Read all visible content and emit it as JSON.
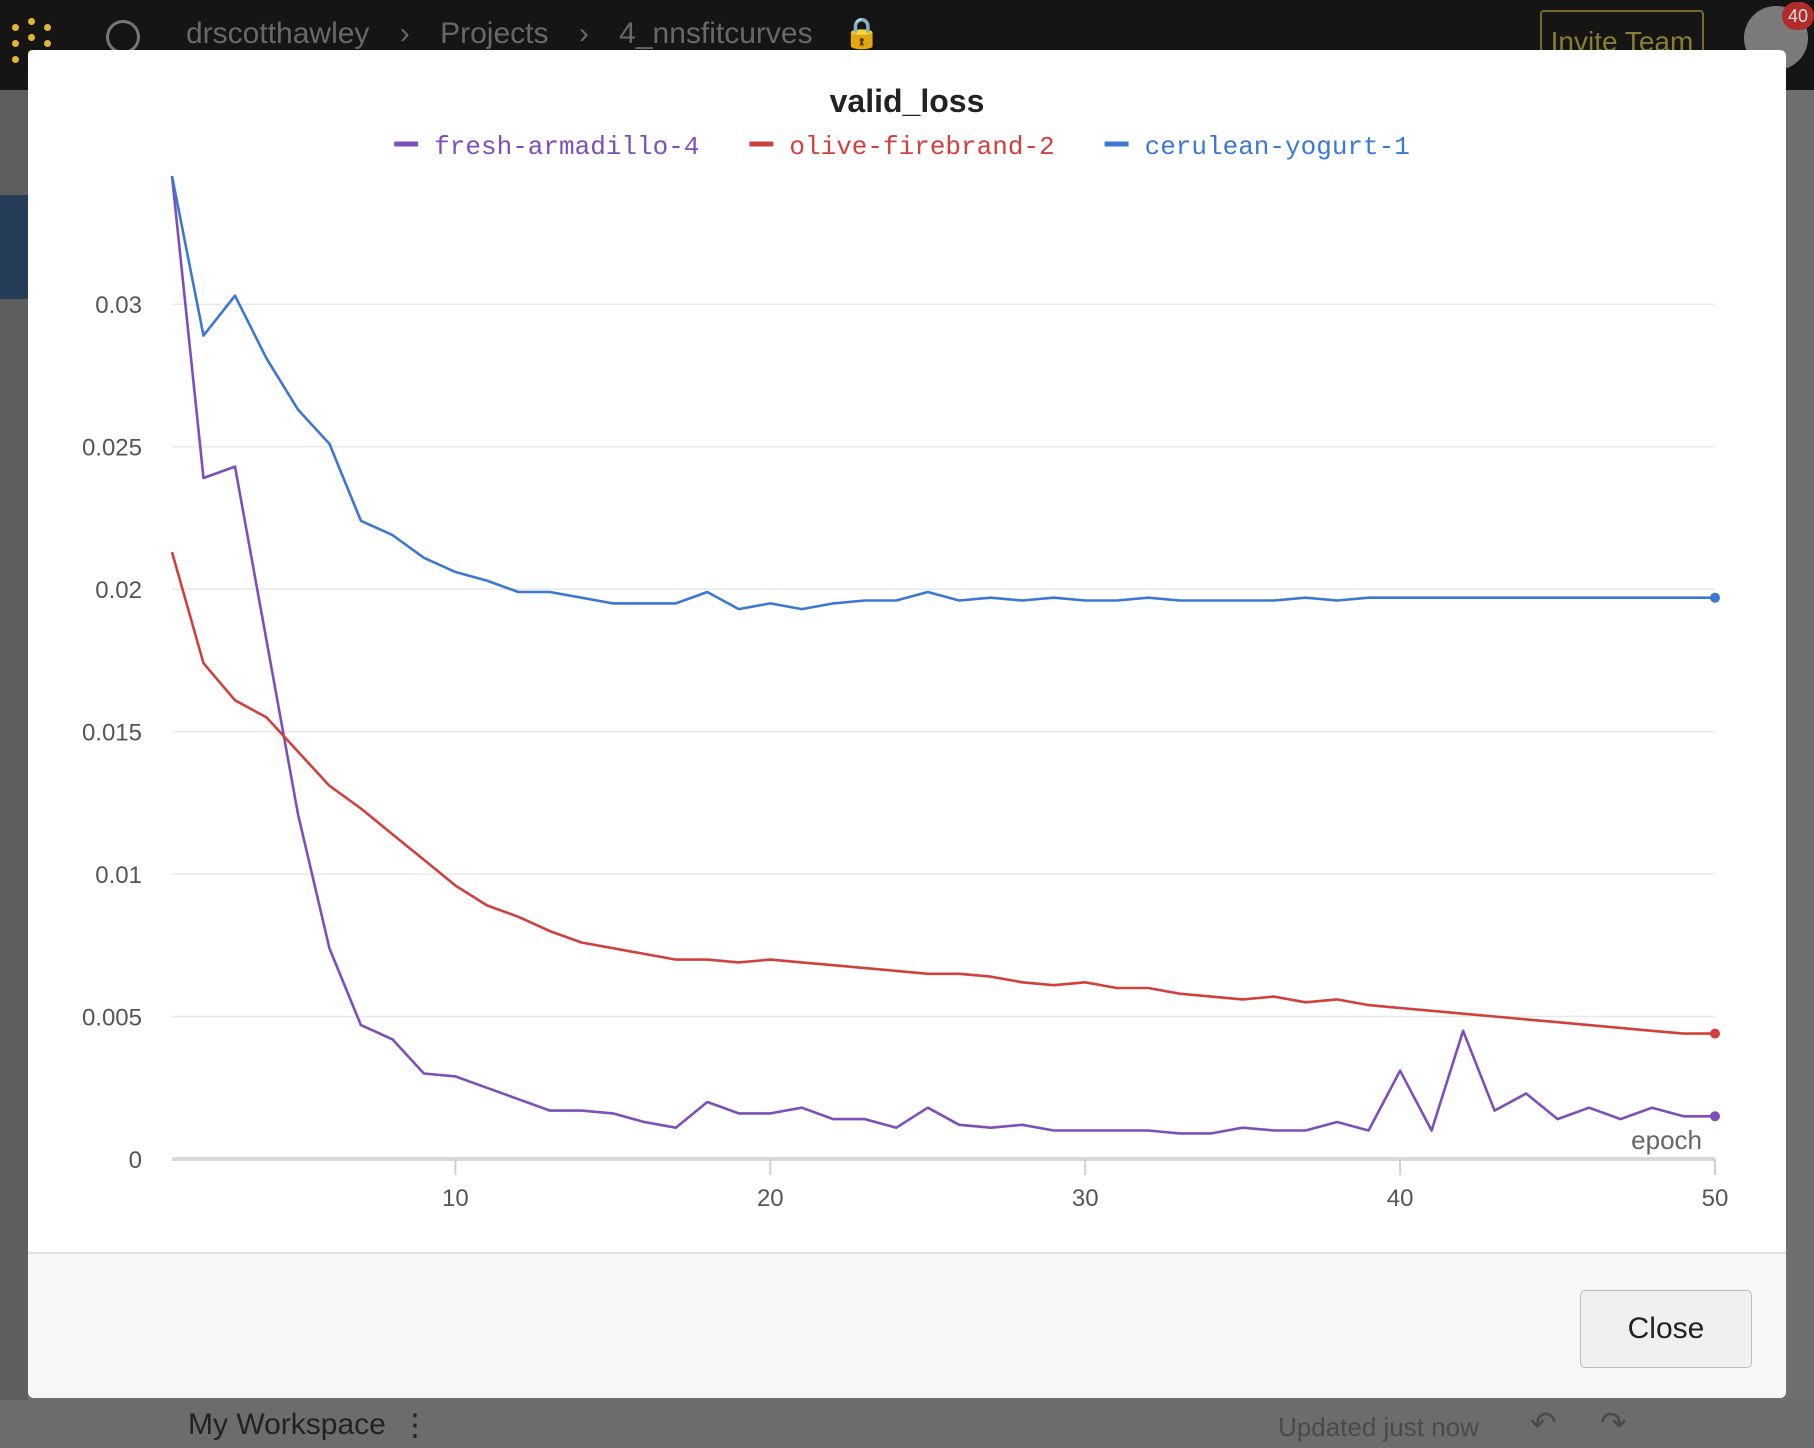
{
  "app": {
    "breadcrumb": [
      "drscotthawley",
      "Projects",
      "4_nnsfitcurves"
    ],
    "invite_label": "Invite Team",
    "notification_count": "40",
    "workspace_label": "My Workspace",
    "updated_text": "Updated just now"
  },
  "modal": {
    "close_label": "Close"
  },
  "chart_data": {
    "type": "line",
    "title": "valid_loss",
    "xlabel": "epoch",
    "ylabel": "",
    "xlim": [
      1,
      50
    ],
    "ylim": [
      0,
      0.0345
    ],
    "xticks": [
      10,
      20,
      30,
      40,
      50
    ],
    "yticks": [
      0,
      0.005,
      0.01,
      0.015,
      0.02,
      0.025,
      0.03
    ],
    "ytick_labels": [
      "0",
      "0.005",
      "0.01",
      "0.015",
      "0.02",
      "0.025",
      "0.03"
    ],
    "grid": true,
    "legend_position": "top-center",
    "x": [
      1,
      2,
      3,
      4,
      5,
      6,
      7,
      8,
      9,
      10,
      11,
      12,
      13,
      14,
      15,
      16,
      17,
      18,
      19,
      20,
      21,
      22,
      23,
      24,
      25,
      26,
      27,
      28,
      29,
      30,
      31,
      32,
      33,
      34,
      35,
      36,
      37,
      38,
      39,
      40,
      41,
      42,
      43,
      44,
      45,
      46,
      47,
      48,
      49,
      50
    ],
    "series": [
      {
        "name": "fresh-armadillo-4",
        "color": "#7e4fb8",
        "values": [
          0.0345,
          0.0239,
          0.0243,
          0.0182,
          0.0121,
          0.0074,
          0.0047,
          0.0042,
          0.003,
          0.0029,
          0.0025,
          0.0021,
          0.0017,
          0.0017,
          0.0016,
          0.0013,
          0.0011,
          0.002,
          0.0016,
          0.0016,
          0.0018,
          0.0014,
          0.0014,
          0.0011,
          0.0018,
          0.0012,
          0.0011,
          0.0012,
          0.001,
          0.001,
          0.001,
          0.001,
          0.0009,
          0.0009,
          0.0011,
          0.001,
          0.001,
          0.0013,
          0.001,
          0.0031,
          0.001,
          0.0045,
          0.0017,
          0.0023,
          0.0014,
          0.0018,
          0.0014,
          0.0018,
          0.0015,
          0.0015
        ]
      },
      {
        "name": "olive-firebrand-2",
        "color": "#d1403d",
        "values": [
          0.0213,
          0.0174,
          0.0161,
          0.0155,
          0.0143,
          0.0131,
          0.0123,
          0.0114,
          0.0105,
          0.0096,
          0.0089,
          0.0085,
          0.008,
          0.0076,
          0.0074,
          0.0072,
          0.007,
          0.007,
          0.0069,
          0.007,
          0.0069,
          0.0068,
          0.0067,
          0.0066,
          0.0065,
          0.0065,
          0.0064,
          0.0062,
          0.0061,
          0.0062,
          0.006,
          0.006,
          0.0058,
          0.0057,
          0.0056,
          0.0057,
          0.0055,
          0.0056,
          0.0054,
          0.0053,
          0.0052,
          0.0051,
          0.005,
          0.0049,
          0.0048,
          0.0047,
          0.0046,
          0.0045,
          0.0044,
          0.0044
        ]
      },
      {
        "name": "cerulean-yogurt-1",
        "color": "#3b78d4",
        "values": [
          0.0345,
          0.0289,
          0.0303,
          0.0281,
          0.0263,
          0.0251,
          0.0224,
          0.0219,
          0.0211,
          0.0206,
          0.0203,
          0.0199,
          0.0199,
          0.0197,
          0.0195,
          0.0195,
          0.0195,
          0.0199,
          0.0193,
          0.0195,
          0.0193,
          0.0195,
          0.0196,
          0.0196,
          0.0199,
          0.0196,
          0.0197,
          0.0196,
          0.0197,
          0.0196,
          0.0196,
          0.0197,
          0.0196,
          0.0196,
          0.0196,
          0.0196,
          0.0197,
          0.0196,
          0.0197,
          0.0197,
          0.0197,
          0.0197,
          0.0197,
          0.0197,
          0.0197,
          0.0197,
          0.0197,
          0.0197,
          0.0197,
          0.0197
        ]
      }
    ]
  }
}
